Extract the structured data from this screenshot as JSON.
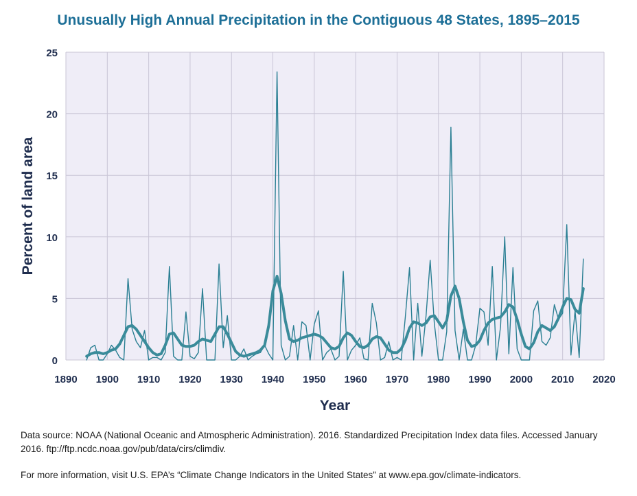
{
  "colors": {
    "plot_bg": "#efedf7",
    "grid": "#c9c5d6",
    "annual": "#2a7f93",
    "average": "#3a8b9a",
    "axis_text": "#1f2d4e",
    "title": "#1d6f97"
  },
  "chart_data": {
    "type": "line",
    "title": "Unusually High Annual Precipitation in the Contiguous 48 States, 1895–2015",
    "xlabel": "Year",
    "ylabel": "Percent of land area",
    "xlim": [
      1890,
      2020
    ],
    "ylim": [
      0,
      25
    ],
    "x_ticks": [
      1890,
      1900,
      1910,
      1920,
      1930,
      1940,
      1950,
      1960,
      1970,
      1980,
      1990,
      2000,
      2010,
      2020
    ],
    "y_ticks": [
      0,
      5,
      10,
      15,
      20,
      25
    ],
    "grid": true,
    "legend": "none",
    "series": [
      {
        "x": [
          1895,
          1896,
          1897,
          1898,
          1899,
          1900,
          1901,
          1902,
          1903,
          1904,
          1905,
          1906,
          1907,
          1908,
          1909,
          1910,
          1911,
          1912,
          1913,
          1914,
          1915,
          1916,
          1917,
          1918,
          1919,
          1920,
          1921,
          1922,
          1923,
          1924,
          1925,
          1926,
          1927,
          1928,
          1929,
          1930,
          1931,
          1932,
          1933,
          1934,
          1935,
          1936,
          1937,
          1938,
          1939,
          1940,
          1941,
          1942,
          1943,
          1944,
          1945,
          1946,
          1947,
          1948,
          1949,
          1950,
          1951,
          1952,
          1953,
          1954,
          1955,
          1956,
          1957,
          1958,
          1959,
          1960,
          1961,
          1962,
          1963,
          1964,
          1965,
          1966,
          1967,
          1968,
          1969,
          1970,
          1971,
          1972,
          1973,
          1974,
          1975,
          1976,
          1977,
          1978,
          1979,
          1980,
          1981,
          1982,
          1983,
          1984,
          1985,
          1986,
          1987,
          1988,
          1989,
          1990,
          1991,
          1992,
          1993,
          1994,
          1995,
          1996,
          1997,
          1998,
          1999,
          2000,
          2001,
          2002,
          2003,
          2004,
          2005,
          2006,
          2007,
          2008,
          2009,
          2010,
          2011,
          2012,
          2013,
          2014,
          2015
        ],
        "values": [
          0.0,
          1.0,
          1.2,
          0.0,
          0.0,
          0.5,
          1.2,
          0.8,
          0.2,
          0.0,
          6.6,
          2.5,
          1.5,
          1.0,
          2.4,
          0.0,
          0.2,
          0.2,
          0.0,
          0.6,
          7.6,
          0.3,
          0.0,
          0.0,
          3.9,
          0.3,
          0.1,
          0.6,
          5.8,
          0.0,
          0.0,
          0.0,
          7.8,
          1.0,
          3.6,
          0.0,
          0.0,
          0.3,
          0.9,
          0.0,
          0.3,
          0.5,
          0.6,
          1.2,
          0.5,
          0.0,
          23.4,
          1.2,
          0.0,
          0.3,
          2.8,
          0.0,
          3.1,
          2.8,
          0.0,
          2.9,
          4.0,
          0.0,
          0.6,
          0.9,
          0.0,
          0.3,
          7.2,
          0.0,
          0.8,
          1.2,
          1.8,
          0.1,
          0.0,
          4.6,
          3.0,
          0.0,
          0.2,
          1.5,
          0.0,
          0.2,
          0.0,
          3.5,
          7.5,
          0.0,
          4.6,
          0.3,
          3.6,
          8.1,
          3.0,
          0.0,
          0.0,
          2.3,
          18.9,
          2.4,
          0.0,
          2.5,
          0.0,
          0.0,
          1.2,
          4.2,
          3.9,
          1.2,
          7.6,
          0.0,
          2.7,
          10.0,
          0.5,
          7.5,
          0.9,
          0.0,
          0.0,
          0.0,
          4.0,
          4.8,
          1.5,
          1.2,
          1.8,
          4.5,
          3.3,
          3.8,
          11.0,
          0.4,
          4.0,
          0.2,
          8.2
        ]
      },
      {
        "x": [
          1895,
          1896,
          1897,
          1898,
          1899,
          1900,
          1901,
          1902,
          1903,
          1904,
          1905,
          1906,
          1907,
          1908,
          1909,
          1910,
          1911,
          1912,
          1913,
          1914,
          1915,
          1916,
          1917,
          1918,
          1919,
          1920,
          1921,
          1922,
          1923,
          1924,
          1925,
          1926,
          1927,
          1928,
          1929,
          1930,
          1931,
          1932,
          1933,
          1934,
          1935,
          1936,
          1937,
          1938,
          1939,
          1940,
          1941,
          1942,
          1943,
          1944,
          1945,
          1946,
          1947,
          1948,
          1949,
          1950,
          1951,
          1952,
          1953,
          1954,
          1955,
          1956,
          1957,
          1958,
          1959,
          1960,
          1961,
          1962,
          1963,
          1964,
          1965,
          1966,
          1967,
          1968,
          1969,
          1970,
          1971,
          1972,
          1973,
          1974,
          1975,
          1976,
          1977,
          1978,
          1979,
          1980,
          1981,
          1982,
          1983,
          1984,
          1985,
          1986,
          1987,
          1988,
          1989,
          1990,
          1991,
          1992,
          1993,
          1994,
          1995,
          1996,
          1997,
          1998,
          1999,
          2000,
          2001,
          2002,
          2003,
          2004,
          2005,
          2006,
          2007,
          2008,
          2009,
          2010,
          2011,
          2012,
          2013,
          2014,
          2015
        ],
        "values": [
          0.3,
          0.5,
          0.6,
          0.6,
          0.5,
          0.6,
          0.8,
          0.9,
          1.3,
          2.0,
          2.7,
          2.8,
          2.5,
          2.0,
          1.5,
          1.0,
          0.6,
          0.4,
          0.5,
          1.2,
          2.1,
          2.2,
          1.7,
          1.2,
          1.1,
          1.1,
          1.2,
          1.5,
          1.7,
          1.6,
          1.5,
          2.1,
          2.7,
          2.7,
          2.1,
          1.4,
          0.7,
          0.4,
          0.3,
          0.4,
          0.5,
          0.6,
          0.8,
          1.2,
          2.8,
          5.6,
          6.8,
          5.4,
          3.2,
          1.7,
          1.5,
          1.6,
          1.8,
          1.9,
          2.0,
          2.1,
          2.0,
          1.8,
          1.4,
          1.0,
          0.9,
          1.1,
          1.8,
          2.2,
          2.0,
          1.5,
          1.1,
          1.0,
          1.2,
          1.7,
          1.9,
          1.8,
          1.3,
          0.8,
          0.6,
          0.6,
          0.9,
          1.6,
          2.6,
          3.1,
          3.0,
          2.8,
          3.0,
          3.5,
          3.6,
          3.1,
          2.6,
          3.2,
          5.2,
          6.0,
          5.0,
          3.1,
          1.6,
          1.1,
          1.2,
          1.6,
          2.4,
          3.0,
          3.3,
          3.4,
          3.5,
          3.9,
          4.5,
          4.3,
          3.3,
          2.1,
          1.1,
          0.9,
          1.4,
          2.3,
          2.8,
          2.6,
          2.4,
          2.7,
          3.4,
          4.3,
          5.0,
          4.9,
          4.1,
          3.8,
          5.8
        ]
      }
    ]
  },
  "footnotes": {
    "source": "Data source: NOAA (National Oceanic and Atmospheric Administration). 2016. Standardized Precipitation Index data files. Accessed January 2016. ftp://ftp.ncdc.noaa.gov/pub/data/cirs/climdiv.",
    "info": "For more information, visit U.S. EPA’s “Climate Change Indicators in the United States” at www.epa.gov/climate-indicators."
  }
}
